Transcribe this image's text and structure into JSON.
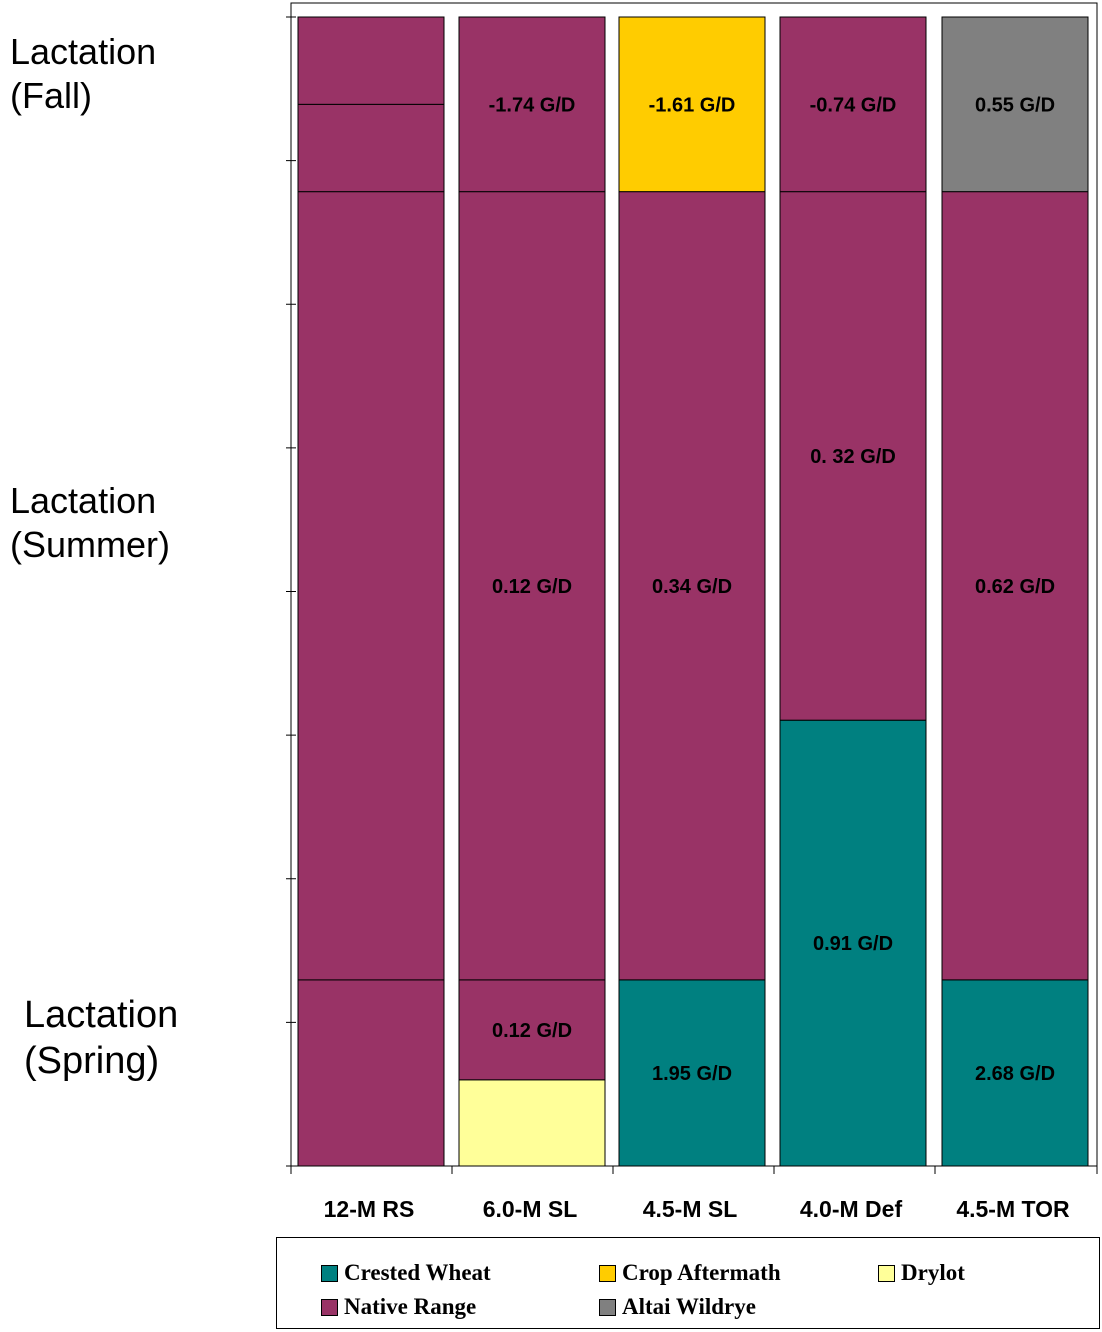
{
  "phase_labels": {
    "fall": [
      "Lactation",
      "(Fall)"
    ],
    "summer": [
      "Lactation",
      "(Summer)"
    ],
    "spring": [
      "Lactation",
      "(Spring)"
    ]
  },
  "colors": {
    "Crested Wheat": "#008080",
    "Crop Aftermath": "#FFCC00",
    "Drylot": "#FFFF99",
    "Native Range": "#993366",
    "Altai Wildrye": "#808080"
  },
  "legend": [
    {
      "label": "Crested Wheat"
    },
    {
      "label": "Crop Aftermath"
    },
    {
      "label": "Drylot"
    },
    {
      "label": "Native Range"
    },
    {
      "label": "Altai Wildrye"
    }
  ],
  "chart_data": {
    "type": "bar",
    "stacked": true,
    "categories": [
      "12-M RS",
      "6.0-M SL",
      "4.5-M SL",
      "4.0-M Def",
      "4.5-M TOR"
    ],
    "y_range": [
      0,
      100
    ],
    "grid": false,
    "legend_position": "bottom",
    "bars": [
      {
        "category": "12-M RS",
        "segments": [
          {
            "source": "Native Range",
            "from": 0,
            "to": 16.2,
            "label": ""
          },
          {
            "source": "Native Range",
            "from": 16.2,
            "to": 84.8,
            "label": ""
          },
          {
            "source": "Native Range",
            "from": 84.8,
            "to": 92.4,
            "label": ""
          },
          {
            "source": "Native Range",
            "from": 92.4,
            "to": 100,
            "label": ""
          }
        ]
      },
      {
        "category": "6.0-M SL",
        "segments": [
          {
            "source": "Drylot",
            "from": 0,
            "to": 7.5,
            "label": ""
          },
          {
            "source": "Native Range",
            "from": 7.5,
            "to": 16.2,
            "label": "0.12 G/D"
          },
          {
            "source": "Native Range",
            "from": 16.2,
            "to": 84.8,
            "label": "0.12 G/D"
          },
          {
            "source": "Native Range",
            "from": 84.8,
            "to": 100,
            "label": "-1.74 G/D"
          }
        ]
      },
      {
        "category": "4.5-M SL",
        "segments": [
          {
            "source": "Crested Wheat",
            "from": 0,
            "to": 16.2,
            "label": "1.95 G/D"
          },
          {
            "source": "Native Range",
            "from": 16.2,
            "to": 84.8,
            "label": "0.34 G/D"
          },
          {
            "source": "Crop Aftermath",
            "from": 84.8,
            "to": 100,
            "label": "-1.61 G/D"
          }
        ]
      },
      {
        "category": "4.0-M Def",
        "segments": [
          {
            "source": "Crested Wheat",
            "from": 0,
            "to": 38.8,
            "label": "0.91 G/D"
          },
          {
            "source": "Native Range",
            "from": 38.8,
            "to": 84.8,
            "label": "0. 32 G/D"
          },
          {
            "source": "Native Range",
            "from": 84.8,
            "to": 100,
            "label": "-0.74 G/D"
          }
        ]
      },
      {
        "category": "4.5-M TOR",
        "segments": [
          {
            "source": "Crested Wheat",
            "from": 0,
            "to": 16.2,
            "label": "2.68 G/D"
          },
          {
            "source": "Native Range",
            "from": 16.2,
            "to": 84.8,
            "label": "0.62 G/D"
          },
          {
            "source": "Altai Wildrye",
            "from": 84.8,
            "to": 100,
            "label": "0.55 G/D"
          }
        ]
      }
    ]
  }
}
